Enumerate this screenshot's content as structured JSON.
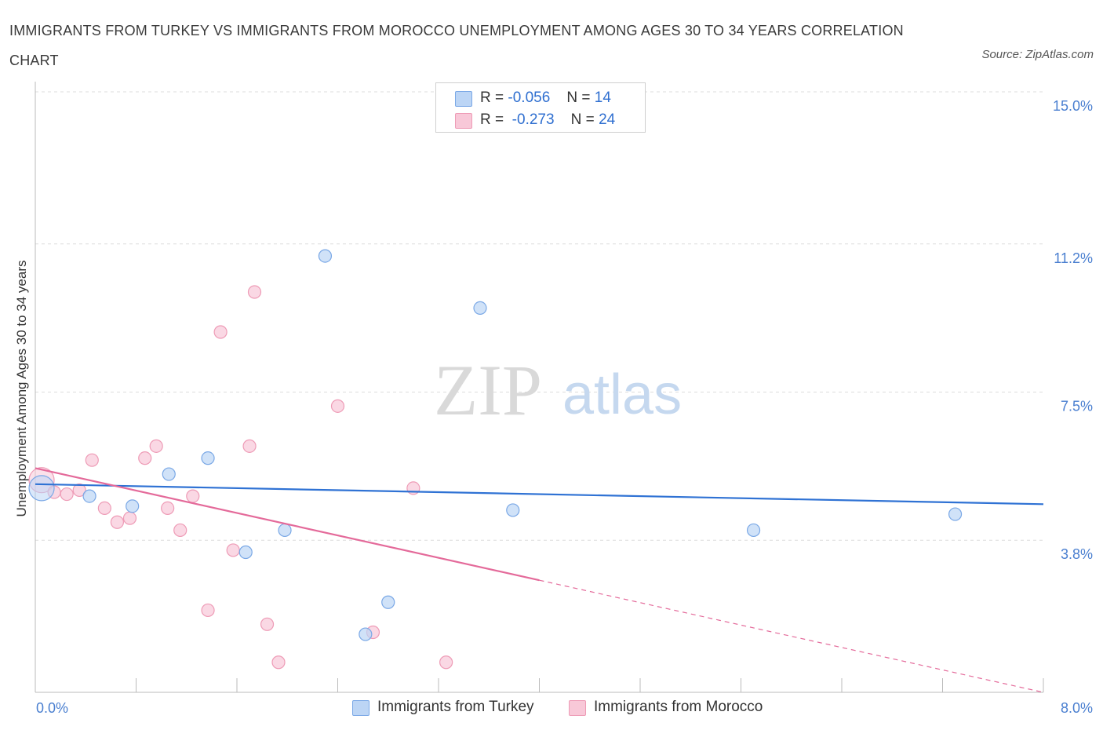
{
  "title": "IMMIGRANTS FROM TURKEY VS IMMIGRANTS FROM MOROCCO UNEMPLOYMENT AMONG AGES 30 TO 34 YEARS CORRELATION CHART",
  "source": "Source: ZipAtlas.com",
  "watermark": {
    "zip": "ZIP",
    "atlas": "atlas"
  },
  "legend": {
    "r_label": "R =",
    "n_label": "N =",
    "rows": [
      {
        "r": "-0.056",
        "n": "14"
      },
      {
        "r": "-0.273",
        "n": "24"
      }
    ]
  },
  "colors": {
    "turkey_fill": "#bcd5f5",
    "turkey_stroke": "#7aa8e6",
    "turkey_line": "#2f72d4",
    "morocco_fill": "#f8c8d8",
    "morocco_stroke": "#ee9bb6",
    "morocco_line": "#e46a9a",
    "tick_text": "#4a7fd0"
  },
  "chart_data": {
    "type": "scatter",
    "title": "IMMIGRANTS FROM TURKEY VS IMMIGRANTS FROM MOROCCO UNEMPLOYMENT AMONG AGES 30 TO 34 YEARS CORRELATION CHART",
    "xlabel": "",
    "ylabel": "Unemployment Among Ages 30 to 34 years",
    "xlim": [
      0,
      8
    ],
    "ylim": [
      0,
      15
    ],
    "x_tick_labels": [
      "0.0%",
      "8.0%"
    ],
    "y_ticks": [
      3.8,
      7.5,
      11.2,
      15.0
    ],
    "y_tick_labels": [
      "3.8%",
      "7.5%",
      "11.2%",
      "15.0%"
    ],
    "grid": "horizontal dashed",
    "legend_position": "top-center",
    "series": [
      {
        "name": "Immigrants from Turkey",
        "points": [
          [
            0.05,
            5.1
          ],
          [
            0.43,
            4.9
          ],
          [
            0.77,
            4.65
          ],
          [
            1.06,
            5.45
          ],
          [
            1.37,
            5.85
          ],
          [
            1.67,
            3.5
          ],
          [
            1.98,
            4.05
          ],
          [
            2.3,
            10.9
          ],
          [
            2.62,
            1.45
          ],
          [
            2.8,
            2.25
          ],
          [
            3.53,
            9.6
          ],
          [
            3.79,
            4.55
          ],
          [
            5.7,
            4.05
          ],
          [
            7.3,
            4.45
          ]
        ],
        "trend": {
          "x": [
            0,
            8
          ],
          "y": [
            5.2,
            4.7
          ]
        }
      },
      {
        "name": "Immigrants from Morocco",
        "points": [
          [
            0.05,
            5.3
          ],
          [
            0.15,
            5.0
          ],
          [
            0.25,
            4.95
          ],
          [
            0.35,
            5.05
          ],
          [
            0.45,
            5.8
          ],
          [
            0.55,
            4.6
          ],
          [
            0.65,
            4.25
          ],
          [
            0.75,
            4.35
          ],
          [
            0.87,
            5.85
          ],
          [
            0.96,
            6.15
          ],
          [
            1.05,
            4.6
          ],
          [
            1.15,
            4.05
          ],
          [
            1.25,
            4.9
          ],
          [
            1.37,
            2.05
          ],
          [
            1.47,
            9.0
          ],
          [
            1.57,
            3.55
          ],
          [
            1.7,
            6.15
          ],
          [
            1.74,
            10.0
          ],
          [
            1.84,
            1.7
          ],
          [
            1.93,
            0.75
          ],
          [
            2.4,
            7.15
          ],
          [
            2.68,
            1.5
          ],
          [
            3.0,
            5.1
          ],
          [
            3.26,
            0.75
          ]
        ],
        "trend": {
          "x": [
            0,
            4
          ],
          "y": [
            5.6,
            2.8
          ]
        },
        "trend_dashed": {
          "x": [
            4,
            8
          ],
          "y": [
            2.8,
            0.0
          ]
        }
      }
    ]
  }
}
